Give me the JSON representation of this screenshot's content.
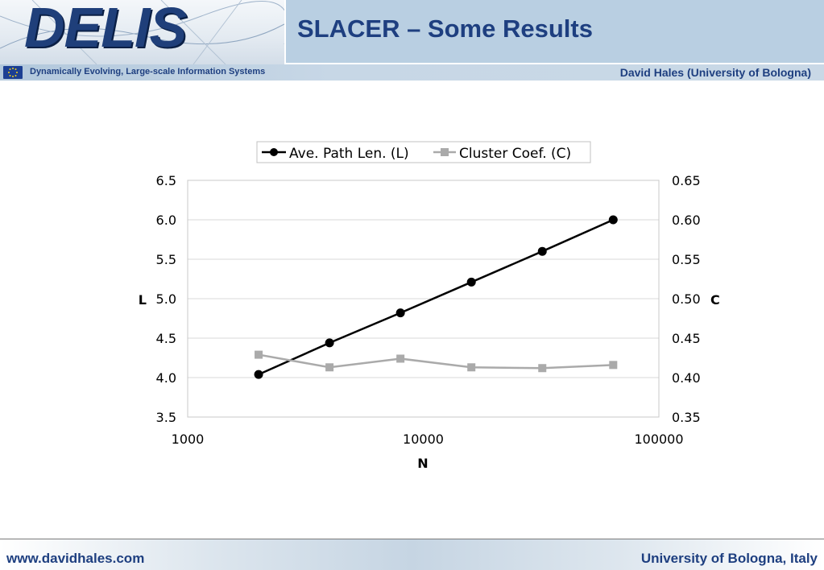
{
  "header": {
    "logo_text": "DELIS",
    "title": "SLACER – Some Results",
    "subtitle": "Dynamically Evolving, Large-scale Information Systems",
    "author": "David Hales (University of Bologna)"
  },
  "footer": {
    "left": "www.davidhales.com",
    "right": "University of Bologna, Italy"
  },
  "colors": {
    "title_blue": "#1e3f80",
    "series_L": "#000000",
    "series_C": "#aaaaaa"
  },
  "chart_data": {
    "type": "line",
    "title": "",
    "xlabel": "N",
    "ylabel_left": "L",
    "ylabel_right": "C",
    "x_scale": "log",
    "xlim": [
      1000,
      100000
    ],
    "x_ticks": [
      "1000",
      "10000",
      "100000"
    ],
    "ylim_left": [
      3.5,
      6.5
    ],
    "y_ticks_left": [
      "3.5",
      "4.0",
      "4.5",
      "5.0",
      "5.5",
      "6.0",
      "6.5"
    ],
    "ylim_right": [
      0.35,
      0.65
    ],
    "y_ticks_right": [
      "0.35",
      "0.40",
      "0.45",
      "0.50",
      "0.55",
      "0.60",
      "0.65"
    ],
    "grid": "horizontal",
    "legend_position": "top",
    "x": [
      2000,
      4000,
      8000,
      16000,
      32000,
      64000
    ],
    "series": [
      {
        "name": "Ave. Path Len. (L)",
        "axis": "left",
        "marker": "circle",
        "values": [
          4.04,
          4.44,
          4.82,
          5.21,
          5.6,
          6.0
        ]
      },
      {
        "name": "Cluster Coef. (C)",
        "axis": "right",
        "marker": "square",
        "values": [
          0.429,
          0.413,
          0.424,
          0.413,
          0.412,
          0.416
        ]
      }
    ]
  }
}
